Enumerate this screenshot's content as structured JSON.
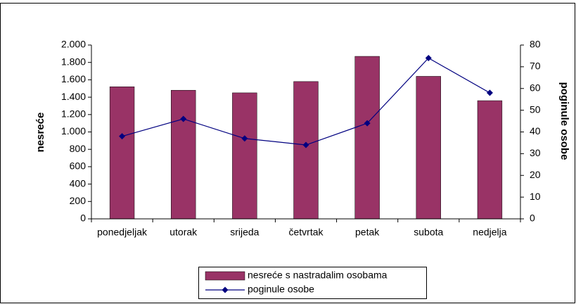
{
  "chart_data": {
    "type": "bar",
    "categories": [
      "ponedjeljak",
      "utorak",
      "srijeda",
      "četvrtak",
      "petak",
      "subota",
      "nedjelja"
    ],
    "series": [
      {
        "name": "nesreće s nastradalim osobama",
        "color": "#993366",
        "values": [
          1520,
          1480,
          1450,
          1580,
          1870,
          1640,
          1360
        ]
      },
      {
        "name": "poginule osobe",
        "color": "#000080",
        "type": "line",
        "axis": "y2",
        "values": [
          38,
          46,
          37,
          34,
          44,
          74,
          58
        ]
      }
    ],
    "ylabel": "nesreće",
    "y2label": "poginule osobe",
    "ylim": [
      0,
      2000
    ],
    "yticks": [
      0,
      200,
      400,
      600,
      800,
      {
        "value": 1000,
        "label": "1.000"
      },
      {
        "value": 1200,
        "label": "1.200"
      },
      {
        "value": 1400,
        "label": "1.400"
      },
      {
        "value": 1600,
        "label": "1.600"
      },
      {
        "value": 1800,
        "label": "1.800"
      },
      {
        "value": 2000,
        "label": "2.000"
      }
    ],
    "y2lim": [
      0,
      80
    ],
    "y2ticks": [
      0,
      10,
      20,
      30,
      40,
      50,
      60,
      70,
      80
    ],
    "grid": false,
    "legend": "bottom"
  }
}
